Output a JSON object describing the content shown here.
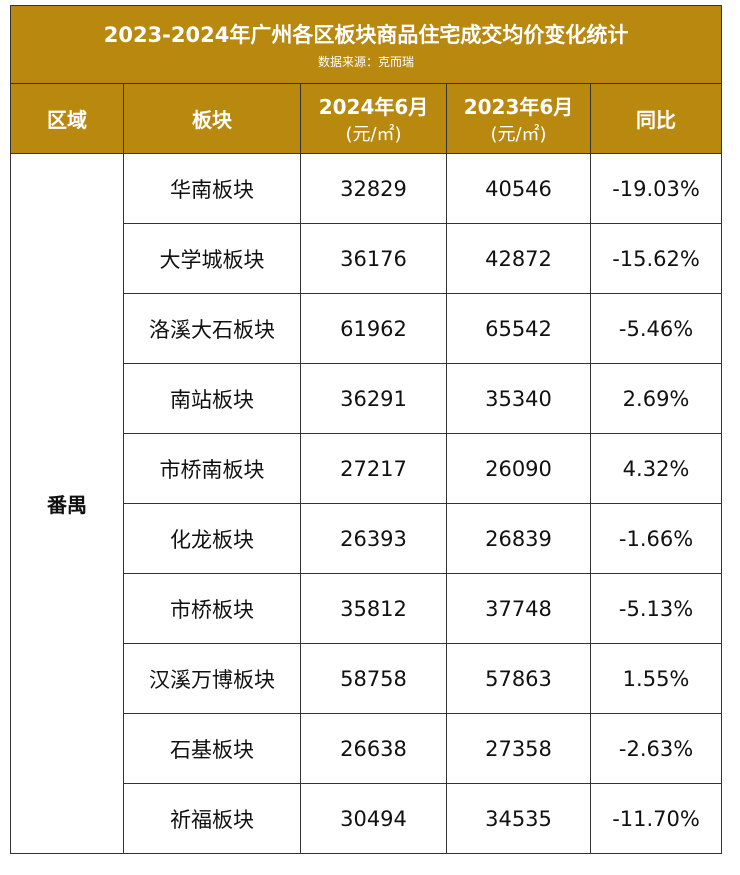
{
  "header": {
    "title": "2023-2024年广州各区板块商品住宅成交均价变化统计",
    "source": "数据来源：克而瑞"
  },
  "table": {
    "columns": [
      [
        "区域"
      ],
      [
        "板块"
      ],
      [
        "2024年6月",
        "(元/㎡)"
      ],
      [
        "2023年6月",
        "(元/㎡)"
      ],
      [
        "同比"
      ]
    ],
    "region": "番禺",
    "rows": [
      [
        "华南板块",
        "32829",
        "40546",
        "-19.03%"
      ],
      [
        "大学城板块",
        "36176",
        "42872",
        "-15.62%"
      ],
      [
        "洛溪大石板块",
        "61962",
        "65542",
        "-5.46%"
      ],
      [
        "南站板块",
        "36291",
        "35340",
        "2.69%"
      ],
      [
        "市桥南板块",
        "27217",
        "26090",
        "4.32%"
      ],
      [
        "化龙板块",
        "26393",
        "26839",
        "-1.66%"
      ],
      [
        "市桥板块",
        "35812",
        "37748",
        "-5.13%"
      ],
      [
        "汉溪万博板块",
        "58758",
        "57863",
        "1.55%"
      ],
      [
        "石基板块",
        "26638",
        "27358",
        "-2.63%"
      ],
      [
        "祈福板块",
        "30494",
        "34535",
        "-11.70%"
      ]
    ]
  }
}
